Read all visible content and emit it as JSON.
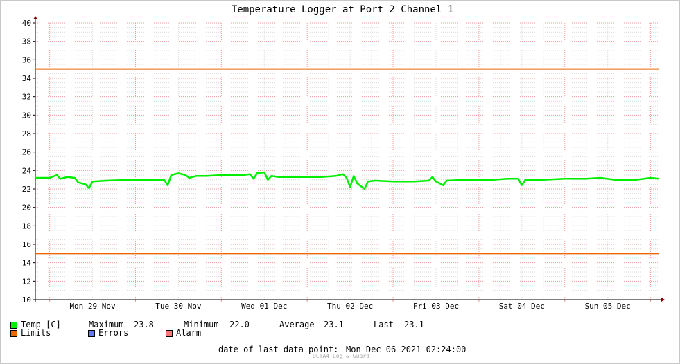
{
  "chart_data": {
    "type": "line",
    "title": "Temperature Logger at Port 2 Channel 1",
    "xlabel": "",
    "ylabel": "",
    "ylim": [
      10,
      40
    ],
    "y_ticks": [
      10,
      12,
      14,
      16,
      18,
      20,
      22,
      24,
      26,
      28,
      30,
      32,
      34,
      36,
      38,
      40
    ],
    "xlim": [
      "2021-11-28T20:00",
      "2021-12-06T02:24"
    ],
    "x_ticks": [
      {
        "label": "Mon 29 Nov",
        "x": "2021-11-29T12:00"
      },
      {
        "label": "Tue 30 Nov",
        "x": "2021-11-30T12:00"
      },
      {
        "label": "Wed 01 Dec",
        "x": "2021-12-01T12:00"
      },
      {
        "label": "Thu 02 Dec",
        "x": "2021-12-02T12:00"
      },
      {
        "label": "Fri 03 Dec",
        "x": "2021-12-03T12:00"
      },
      {
        "label": "Sat 04 Dec",
        "x": "2021-12-04T12:00"
      },
      {
        "label": "Sun 05 Dec",
        "x": "2021-12-05T12:00"
      }
    ],
    "grid": true,
    "series": [
      {
        "name": "Temp [C]",
        "color": "#00ee00",
        "points": [
          [
            "2021-11-28T20:00",
            23.2
          ],
          [
            "2021-11-29T00:00",
            23.2
          ],
          [
            "2021-11-29T02:00",
            23.5
          ],
          [
            "2021-11-29T03:00",
            23.1
          ],
          [
            "2021-11-29T05:00",
            23.3
          ],
          [
            "2021-11-29T07:00",
            23.2
          ],
          [
            "2021-11-29T08:00",
            22.7
          ],
          [
            "2021-11-29T10:00",
            22.5
          ],
          [
            "2021-11-29T11:00",
            22.1
          ],
          [
            "2021-11-29T12:00",
            22.8
          ],
          [
            "2021-11-29T16:00",
            22.9
          ],
          [
            "2021-11-29T22:00",
            23.0
          ],
          [
            "2021-11-30T04:00",
            23.0
          ],
          [
            "2021-11-30T08:00",
            23.0
          ],
          [
            "2021-11-30T09:00",
            22.4
          ],
          [
            "2021-11-30T10:00",
            23.5
          ],
          [
            "2021-11-30T12:00",
            23.7
          ],
          [
            "2021-11-30T14:00",
            23.5
          ],
          [
            "2021-11-30T15:00",
            23.2
          ],
          [
            "2021-11-30T17:00",
            23.4
          ],
          [
            "2021-11-30T20:00",
            23.4
          ],
          [
            "2021-12-01T00:00",
            23.5
          ],
          [
            "2021-12-01T06:00",
            23.5
          ],
          [
            "2021-12-01T08:00",
            23.6
          ],
          [
            "2021-12-01T09:00",
            23.1
          ],
          [
            "2021-12-01T10:00",
            23.7
          ],
          [
            "2021-12-01T12:00",
            23.8
          ],
          [
            "2021-12-01T13:00",
            23.0
          ],
          [
            "2021-12-01T14:00",
            23.4
          ],
          [
            "2021-12-01T16:00",
            23.3
          ],
          [
            "2021-12-01T22:00",
            23.3
          ],
          [
            "2021-12-02T04:00",
            23.3
          ],
          [
            "2021-12-02T08:00",
            23.4
          ],
          [
            "2021-12-02T10:00",
            23.6
          ],
          [
            "2021-12-02T11:00",
            23.2
          ],
          [
            "2021-12-02T12:00",
            22.2
          ],
          [
            "2021-12-02T13:00",
            23.4
          ],
          [
            "2021-12-02T14:00",
            22.6
          ],
          [
            "2021-12-02T15:00",
            22.3
          ],
          [
            "2021-12-02T16:00",
            22.0
          ],
          [
            "2021-12-02T17:00",
            22.8
          ],
          [
            "2021-12-02T19:00",
            22.9
          ],
          [
            "2021-12-03T00:00",
            22.8
          ],
          [
            "2021-12-03T06:00",
            22.8
          ],
          [
            "2021-12-03T10:00",
            22.9
          ],
          [
            "2021-12-03T11:00",
            23.3
          ],
          [
            "2021-12-03T12:00",
            22.8
          ],
          [
            "2021-12-03T14:00",
            22.4
          ],
          [
            "2021-12-03T15:00",
            22.9
          ],
          [
            "2021-12-03T20:00",
            23.0
          ],
          [
            "2021-12-04T04:00",
            23.0
          ],
          [
            "2021-12-04T08:00",
            23.1
          ],
          [
            "2021-12-04T11:00",
            23.1
          ],
          [
            "2021-12-04T12:00",
            22.4
          ],
          [
            "2021-12-04T13:00",
            23.0
          ],
          [
            "2021-12-04T18:00",
            23.0
          ],
          [
            "2021-12-05T00:00",
            23.1
          ],
          [
            "2021-12-05T06:00",
            23.1
          ],
          [
            "2021-12-05T10:00",
            23.2
          ],
          [
            "2021-12-05T14:00",
            23.0
          ],
          [
            "2021-12-05T20:00",
            23.0
          ],
          [
            "2021-12-06T00:00",
            23.2
          ],
          [
            "2021-12-06T02:24",
            23.1
          ]
        ]
      },
      {
        "name": "Limits",
        "color": "#ee6600",
        "value": 35
      },
      {
        "name": "Limits",
        "color": "#ee6600",
        "value": 15
      }
    ]
  },
  "legend": {
    "temp_label": "Temp [C]",
    "temp_color": "#00ee00",
    "maximum_label": "Maximum",
    "maximum_value": "23.8",
    "minimum_label": "Minimum",
    "minimum_value": "22.0",
    "average_label": "Average",
    "average_value": "23.1",
    "last_label": "Last",
    "last_value": "23.1",
    "limits_label": "Limits",
    "limits_color": "#ee6600",
    "errors_label": "Errors",
    "errors_color": "#6677ff",
    "alarm_label": "Alarm",
    "alarm_color": "#ff7777"
  },
  "footer": {
    "last_point_label": "date of last data point:",
    "last_point_value": "Mon Dec 06 2021 02:24:00",
    "credit": "OCTA4 Log & Guard"
  }
}
